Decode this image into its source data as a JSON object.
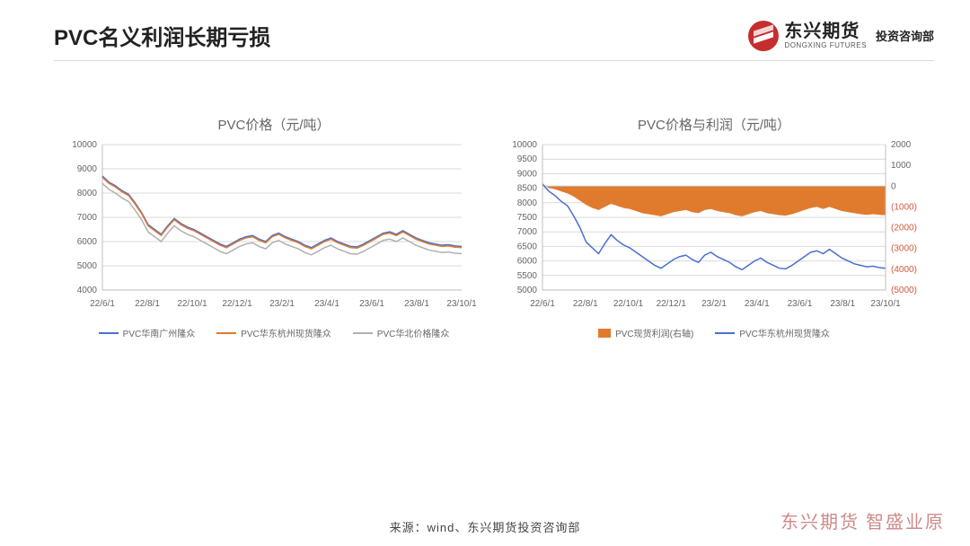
{
  "header": {
    "title": "PVC名义利润长期亏损",
    "brand_cn": "东兴期货",
    "brand_en": "DONGXING FUTURES",
    "brand_dept": "投资咨询部"
  },
  "footer": {
    "source": "来源：wind、东兴期货投资咨询部",
    "watermark": "东兴期货 智盛业原"
  },
  "chart_left": {
    "type": "line",
    "title": "PVC价格（元/吨）",
    "title_fontsize": 15,
    "title_color": "#666666",
    "background_color": "#ffffff",
    "grid_color": "#d9d9d9",
    "axis_color": "#bfbfbf",
    "tick_fontsize": 10,
    "tick_color": "#666666",
    "ylim": [
      4000,
      10000
    ],
    "ytick_step": 1000,
    "yticks": [
      4000,
      5000,
      6000,
      7000,
      8000,
      9000,
      10000
    ],
    "x_categories": [
      "22/6/1",
      "22/8/1",
      "22/10/1",
      "22/12/1",
      "23/2/1",
      "23/4/1",
      "23/6/1",
      "23/8/1",
      "23/10/1"
    ],
    "line_width": 1.5,
    "series": [
      {
        "name": "PVC华南广州隆众",
        "color": "#4a6fd0",
        "data": [
          8700,
          8450,
          8300,
          8100,
          7950,
          7600,
          7200,
          6700,
          6500,
          6300,
          6650,
          6950,
          6750,
          6600,
          6500,
          6350,
          6200,
          6050,
          5900,
          5800,
          5950,
          6100,
          6200,
          6250,
          6100,
          6000,
          6250,
          6350,
          6200,
          6100,
          6000,
          5850,
          5750,
          5900,
          6050,
          6150,
          6000,
          5900,
          5800,
          5780,
          5900,
          6050,
          6200,
          6350,
          6400,
          6300,
          6450,
          6300,
          6150,
          6050,
          5950,
          5900,
          5850,
          5870,
          5820,
          5800
        ]
      },
      {
        "name": "PVC华东杭州现货隆众",
        "color": "#e07b2e",
        "data": [
          8650,
          8400,
          8250,
          8050,
          7900,
          7550,
          7150,
          6650,
          6450,
          6250,
          6600,
          6900,
          6700,
          6550,
          6450,
          6300,
          6150,
          6000,
          5850,
          5750,
          5900,
          6050,
          6150,
          6200,
          6050,
          5950,
          6200,
          6300,
          6150,
          6050,
          5950,
          5800,
          5700,
          5850,
          6000,
          6100,
          5950,
          5850,
          5750,
          5730,
          5850,
          6000,
          6150,
          6300,
          6350,
          6250,
          6400,
          6250,
          6100,
          6000,
          5900,
          5850,
          5800,
          5820,
          5770,
          5750
        ]
      },
      {
        "name": "PVC华北价格隆众",
        "color": "#b0b0b0",
        "data": [
          8400,
          8150,
          8000,
          7800,
          7650,
          7300,
          6900,
          6400,
          6200,
          6000,
          6350,
          6650,
          6450,
          6300,
          6200,
          6050,
          5900,
          5750,
          5600,
          5500,
          5650,
          5800,
          5900,
          5950,
          5800,
          5700,
          5950,
          6050,
          5900,
          5800,
          5700,
          5550,
          5450,
          5600,
          5750,
          5850,
          5700,
          5600,
          5500,
          5480,
          5600,
          5750,
          5900,
          6050,
          6100,
          6000,
          6150,
          6000,
          5850,
          5750,
          5650,
          5600,
          5550,
          5570,
          5520,
          5500
        ]
      }
    ]
  },
  "chart_right": {
    "type": "combo",
    "title": "PVC价格与利润（元/吨）",
    "title_fontsize": 15,
    "title_color": "#666666",
    "background_color": "#ffffff",
    "grid_color": "#d9d9d9",
    "axis_color": "#bfbfbf",
    "tick_fontsize": 10,
    "tick_color": "#666666",
    "y1_lim": [
      5000,
      10000
    ],
    "y1_tick_step": 500,
    "y1_ticks": [
      5000,
      5500,
      6000,
      6500,
      7000,
      7500,
      8000,
      8500,
      9000,
      9500,
      10000
    ],
    "y2_lim": [
      -5000,
      2000
    ],
    "y2_tick_step": 1000,
    "y2_ticks": [
      -5000,
      -4000,
      -3000,
      -2000,
      -1000,
      0,
      1000,
      2000
    ],
    "y2_tick_labels": [
      "(5000)",
      "(4000)",
      "(3000)",
      "(2000)",
      "(1000)",
      "0",
      "1000",
      "2000"
    ],
    "y2_label_color_neg": "#d05a3a",
    "x_categories": [
      "22/6/1",
      "22/8/1",
      "22/10/1",
      "22/12/1",
      "23/2/1",
      "23/4/1",
      "23/6/1",
      "23/8/1",
      "23/10/1"
    ],
    "area_series": {
      "name": "PVC现货利润(右轴)",
      "color": "#e07b2e",
      "fill_opacity": 1,
      "baseline": 0,
      "axis": "y2",
      "data": [
        100,
        -80,
        -150,
        -250,
        -350,
        -500,
        -700,
        -900,
        -1050,
        -1150,
        -1000,
        -850,
        -950,
        -1050,
        -1100,
        -1200,
        -1300,
        -1350,
        -1400,
        -1450,
        -1350,
        -1250,
        -1200,
        -1150,
        -1250,
        -1300,
        -1150,
        -1100,
        -1200,
        -1250,
        -1300,
        -1400,
        -1450,
        -1350,
        -1250,
        -1200,
        -1300,
        -1350,
        -1400,
        -1420,
        -1350,
        -1250,
        -1150,
        -1050,
        -1000,
        -1100,
        -1000,
        -1100,
        -1200,
        -1250,
        -1300,
        -1350,
        -1380,
        -1350,
        -1380,
        -1400
      ]
    },
    "line_series": {
      "name": "PVC华东杭州现货隆众",
      "color": "#4a6fd0",
      "line_width": 1.5,
      "axis": "y1",
      "data": [
        8650,
        8400,
        8250,
        8050,
        7900,
        7550,
        7150,
        6650,
        6450,
        6250,
        6600,
        6900,
        6700,
        6550,
        6450,
        6300,
        6150,
        6000,
        5850,
        5750,
        5900,
        6050,
        6150,
        6200,
        6050,
        5950,
        6200,
        6300,
        6150,
        6050,
        5950,
        5800,
        5700,
        5850,
        6000,
        6100,
        5950,
        5850,
        5750,
        5730,
        5850,
        6000,
        6150,
        6300,
        6350,
        6250,
        6400,
        6250,
        6100,
        6000,
        5900,
        5850,
        5800,
        5820,
        5770,
        5750
      ]
    }
  }
}
